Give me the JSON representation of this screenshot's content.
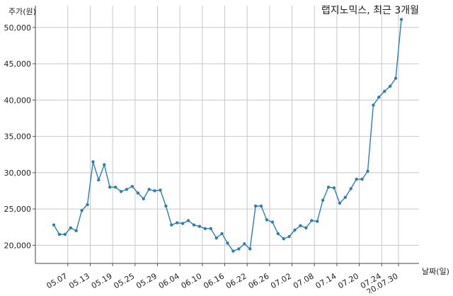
{
  "chart_data": {
    "type": "line",
    "title": "랩지노믹스, 최근 3개월",
    "ylabel": "주가(원)",
    "xlabel": "날짜(일)",
    "ylim": [
      17500,
      53000
    ],
    "grid": true,
    "yticks": [
      {
        "value": 20000,
        "label": "20,000"
      },
      {
        "value": 25000,
        "label": "25,000"
      },
      {
        "value": 30000,
        "label": "30,000"
      },
      {
        "value": 35000,
        "label": "35,000"
      },
      {
        "value": 40000,
        "label": "40,000"
      },
      {
        "value": 45000,
        "label": "45,000"
      },
      {
        "value": 50000,
        "label": "50,000"
      }
    ],
    "xticks": [
      {
        "index": 2.5,
        "label": "05.07"
      },
      {
        "index": 6.5,
        "label": "05.13"
      },
      {
        "index": 10.5,
        "label": "05.19"
      },
      {
        "index": 14.5,
        "label": "05.25"
      },
      {
        "index": 18.5,
        "label": "05.29"
      },
      {
        "index": 22.5,
        "label": "06.04"
      },
      {
        "index": 26.5,
        "label": "06.10"
      },
      {
        "index": 30.5,
        "label": "06.16"
      },
      {
        "index": 34.5,
        "label": "06.22"
      },
      {
        "index": 38.5,
        "label": "06.26"
      },
      {
        "index": 42.5,
        "label": "07.02"
      },
      {
        "index": 46.5,
        "label": "07.08"
      },
      {
        "index": 50.5,
        "label": "07.14"
      },
      {
        "index": 54.5,
        "label": "07.20"
      },
      {
        "index": 58.5,
        "label": "07.24"
      },
      {
        "index": 61.5,
        "label": "20.07.30"
      }
    ],
    "series": [
      {
        "color": "#2e7fb0",
        "values": [
          22800,
          21500,
          21500,
          22400,
          22000,
          24800,
          25600,
          31500,
          29000,
          31100,
          28000,
          28000,
          27400,
          27700,
          28100,
          27200,
          26400,
          27700,
          27500,
          27600,
          25400,
          22800,
          23100,
          23000,
          23400,
          22800,
          22600,
          22300,
          22300,
          21000,
          21600,
          20300,
          19200,
          19500,
          20200,
          19500,
          25400,
          25400,
          23500,
          23200,
          21600,
          20900,
          21200,
          22100,
          22700,
          22400,
          23400,
          23300,
          26200,
          28000,
          27900,
          25800,
          26600,
          27800,
          29100,
          29100,
          30200,
          39300,
          40400,
          41200,
          41900,
          43000,
          51100
        ]
      }
    ]
  }
}
